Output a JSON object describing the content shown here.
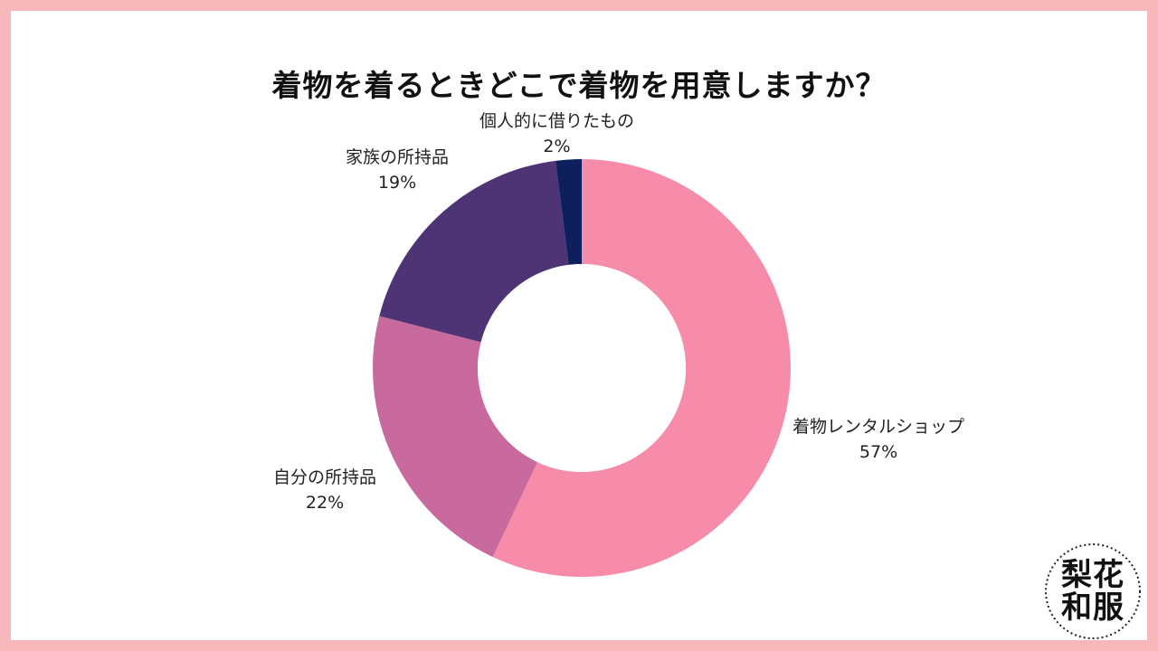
{
  "chart_data": {
    "type": "pie",
    "title": "着物を着るときどこで着物を用意しますか？",
    "donut": true,
    "slices": [
      {
        "label": "着物レンタルショップ",
        "value": 57,
        "display": "57%",
        "color": "#f68ca9"
      },
      {
        "label": "自分の所持品",
        "value": 22,
        "display": "22%",
        "color": "#c86a9d"
      },
      {
        "label": "家族の所持品",
        "value": 19,
        "display": "19%",
        "color": "#4f3475"
      },
      {
        "label": "個人的に借りたもの",
        "value": 2,
        "display": "2%",
        "color": "#0d1f5c"
      }
    ],
    "legend": "none"
  },
  "logo": {
    "line1": "梨花",
    "line2": "和服"
  },
  "colors": {
    "border": "#f7b7bb",
    "background": "#ffffff"
  }
}
